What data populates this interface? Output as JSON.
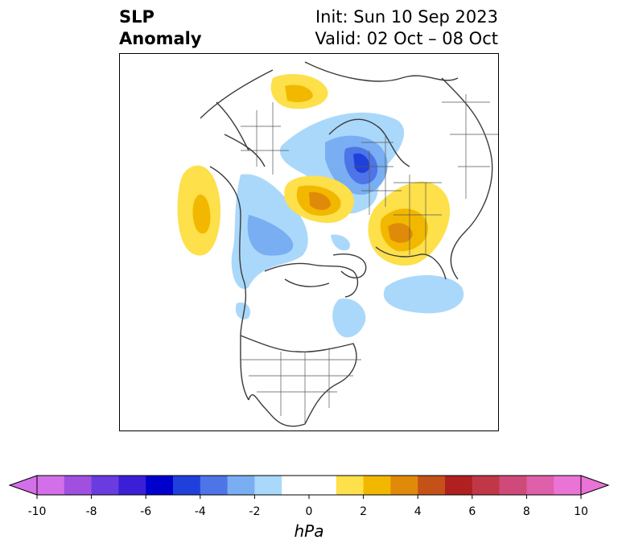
{
  "title": {
    "variable_line1": "SLP",
    "variable_line2": "Anomaly",
    "init": "Init: Sun 10 Sep 2023",
    "valid": "Valid: 02 Oct – 08 Oct"
  },
  "map": {
    "projection": "north-polar stereographic",
    "features": [
      {
        "name": "positive-anomaly-north-pacific",
        "level": 2.5
      },
      {
        "name": "positive-anomaly-europe",
        "level": 3
      },
      {
        "name": "positive-anomaly-east-siberia",
        "level": 3.5
      },
      {
        "name": "positive-anomaly-east-asia",
        "level": 3.5
      },
      {
        "name": "negative-anomaly-central-asia",
        "level": -5
      },
      {
        "name": "negative-anomaly-bering-sea",
        "level": -3
      },
      {
        "name": "negative-anomaly-north-atlantic",
        "level": -1.5
      },
      {
        "name": "negative-anomaly-hudson-bay",
        "level": -1.5
      }
    ]
  },
  "colorbar": {
    "unit": "hPa",
    "extend": "both",
    "ticks": [
      "-10",
      "-8",
      "-6",
      "-4",
      "-2",
      "0",
      "2",
      "4",
      "6",
      "8",
      "10"
    ],
    "colors": [
      "#d36fe8",
      "#a050e0",
      "#6a3ce0",
      "#3b1fd6",
      "#0000cc",
      "#2040dc",
      "#4d75e8",
      "#79aef2",
      "#aad8fb",
      "#ffffff",
      "#ffffff",
      "#fde04a",
      "#f2b800",
      "#e08a0a",
      "#c45218",
      "#b02020",
      "#c03848",
      "#cf4a7a",
      "#de5faa",
      "#ea74d6"
    ],
    "over_color": "#ea74d6",
    "under_color": "#d36fe8"
  }
}
